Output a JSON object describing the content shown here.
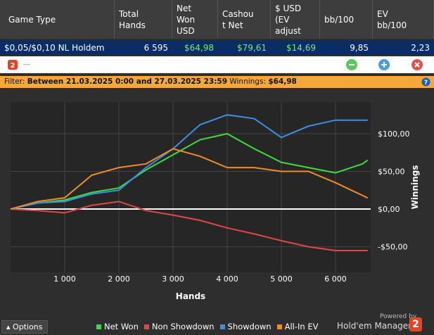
{
  "table": {
    "headers": [
      [
        "Game Type"
      ],
      [
        "Total",
        "Hands"
      ],
      [
        "Net",
        "Won",
        "USD"
      ],
      [
        "Cashou",
        "t Net"
      ],
      [
        "$ USD",
        "(EV",
        "adjust"
      ],
      [
        "bb/100"
      ],
      [
        "EV",
        "bb/100"
      ]
    ],
    "rows": [
      [
        "$0,05/$0,10 NL Holdem",
        "6 595",
        "$64,98",
        "$79,61",
        "$14,69",
        "9,85",
        "2,23"
      ]
    ]
  },
  "toolbar": {
    "title": "---"
  },
  "filter": {
    "prefix": "Filter:",
    "range": "Between 21.03.2025 0:00 and 27.03.2025 23:59",
    "winnings_label": "Winnings:",
    "winnings": "$64,98"
  },
  "chart_data": {
    "type": "line",
    "x_label": "Hands",
    "y_label": "Winnings",
    "x": [
      0,
      500,
      1000,
      1500,
      2000,
      2500,
      3000,
      3500,
      4000,
      4500,
      5000,
      5500,
      6000,
      6500,
      6595
    ],
    "series": [
      {
        "name": "Net Won",
        "color": "#3ddc3d",
        "values": [
          0,
          8,
          12,
          22,
          28,
          52,
          72,
          92,
          100,
          80,
          62,
          55,
          48,
          60,
          64.98
        ]
      },
      {
        "name": "Non Showdown",
        "color": "#e04848",
        "values": [
          0,
          -2,
          -5,
          5,
          10,
          -2,
          -8,
          -15,
          -25,
          -33,
          -42,
          -50,
          -55,
          -55,
          -55
        ]
      },
      {
        "name": "Showdown",
        "color": "#3b8fe0",
        "values": [
          0,
          8,
          10,
          20,
          25,
          55,
          80,
          112,
          125,
          120,
          95,
          110,
          118,
          118,
          118
        ]
      },
      {
        "name": "All-In EV",
        "color": "#f08c28",
        "values": [
          0,
          10,
          15,
          45,
          55,
          60,
          80,
          70,
          55,
          55,
          50,
          50,
          35,
          18,
          14.69
        ]
      }
    ],
    "xlim": [
      0,
      6650
    ],
    "ylim": [
      -84,
      142
    ],
    "xticks": [
      {
        "value": 1000,
        "label": "1 000"
      },
      {
        "value": 2000,
        "label": "2 000"
      },
      {
        "value": 3000,
        "label": "3 000"
      },
      {
        "value": 4000,
        "label": "4 000"
      },
      {
        "value": 5000,
        "label": "5 000"
      },
      {
        "value": 6000,
        "label": "6 000"
      }
    ],
    "yticks": [
      {
        "value": -50,
        "label": "-$50,00"
      },
      {
        "value": 0,
        "label": "$0,00"
      },
      {
        "value": 50,
        "label": "$50,00"
      },
      {
        "value": 100,
        "label": "$100,00"
      }
    ],
    "grid": true
  },
  "footer": {
    "options": "Options",
    "powered_by": "Powered by",
    "brand": "Hold'em Manager",
    "logo": "2"
  }
}
